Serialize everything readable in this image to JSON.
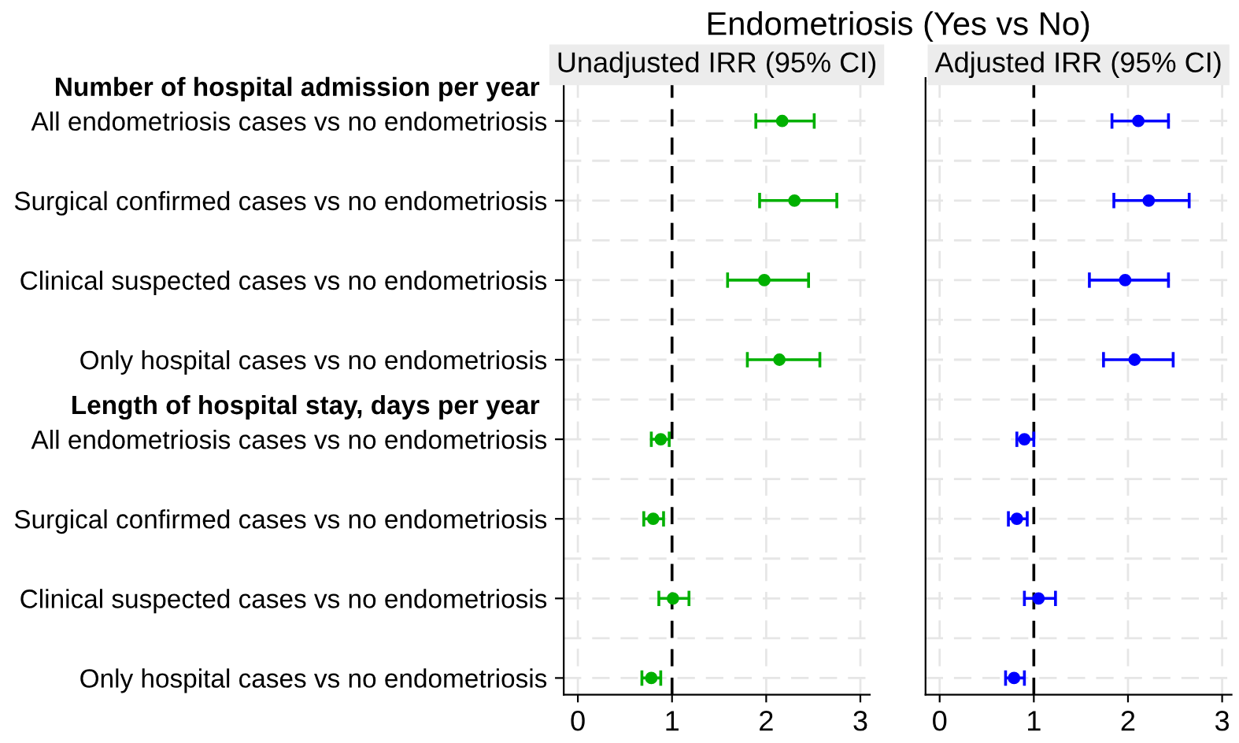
{
  "chart_data": [
    {
      "type": "scatter",
      "title": "Endometriosis (Yes vs No)",
      "subtitle": "Unadjusted IRR (95% CI)",
      "orientation": "horizontal",
      "categories": [
        "All endometriosis cases vs no endometriosis",
        "Surgical confirmed cases vs no endometriosis",
        "Clinical suspected cases vs no endometriosis",
        "Only hospital cases vs no endometriosis",
        "All endometriosis cases vs no endometriosis",
        "Surgical confirmed cases vs no endometriosis",
        "Clinical suspected cases vs no endometriosis",
        "Only hospital cases vs no endometriosis"
      ],
      "annotations": [
        "Number of hospital admission per year",
        "Length of hospital stay, days per year"
      ],
      "series": [
        {
          "color": "#00b000",
          "values": [
            2.17,
            2.3,
            1.98,
            2.14,
            0.88,
            0.8,
            1.01,
            0.78
          ],
          "errors": [
            [
              1.89,
              2.51
            ],
            [
              1.93,
              2.75
            ],
            [
              1.59,
              2.45
            ],
            [
              1.8,
              2.57
            ],
            [
              0.78,
              0.97
            ],
            [
              0.7,
              0.91
            ],
            [
              0.86,
              1.18
            ],
            [
              0.68,
              0.88
            ]
          ]
        }
      ],
      "xlim": [
        -0.15,
        3.1
      ],
      "xticks": [
        0,
        1,
        2,
        3
      ],
      "grid": true,
      "marker": "circle",
      "ref_lines": [
        {
          "axis": "x",
          "value": 1,
          "color": "#000000",
          "line_style": "dashed"
        }
      ]
    },
    {
      "type": "scatter",
      "subtitle": "Adjusted IRR (95% CI)",
      "orientation": "horizontal",
      "tick_labels": "x",
      "categories": [
        null,
        null,
        null,
        null,
        null,
        null,
        null,
        null
      ],
      "series": [
        {
          "color": "#0000ff",
          "values": [
            2.11,
            2.22,
            1.97,
            2.07,
            0.9,
            0.82,
            1.05,
            0.79
          ],
          "errors": [
            [
              1.83,
              2.43
            ],
            [
              1.85,
              2.65
            ],
            [
              1.59,
              2.43
            ],
            [
              1.74,
              2.48
            ],
            [
              0.82,
              1.0
            ],
            [
              0.73,
              0.93
            ],
            [
              0.9,
              1.23
            ],
            [
              0.7,
              0.9
            ]
          ]
        }
      ],
      "xlim": [
        -0.15,
        3.1
      ],
      "xticks": [
        0,
        1,
        2,
        3
      ],
      "grid": true,
      "marker": "circle",
      "ref_lines": [
        {
          "axis": "x",
          "value": 1,
          "color": "#000000",
          "line_style": "dashed"
        }
      ]
    }
  ]
}
